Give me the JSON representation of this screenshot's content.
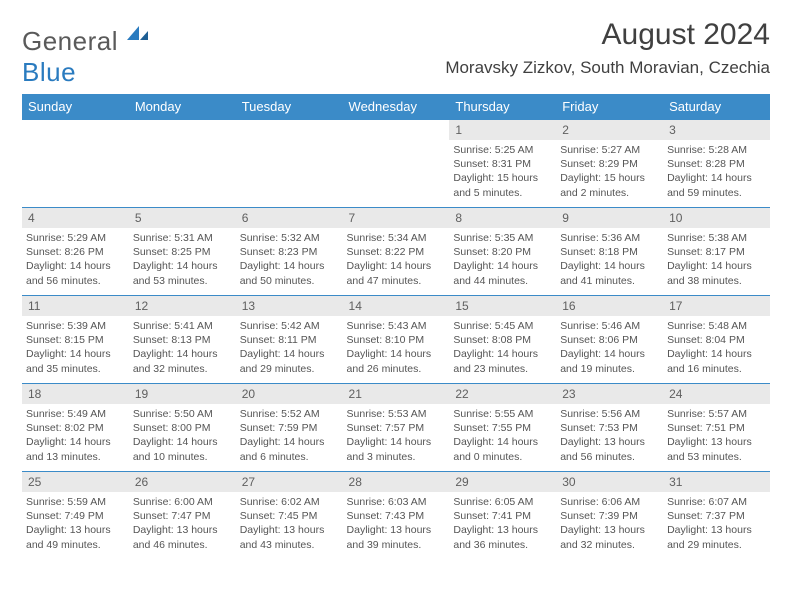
{
  "brand": {
    "name_part1": "General",
    "name_part2": "Blue"
  },
  "colors": {
    "header_bg": "#3b8bc8",
    "header_text": "#ffffff",
    "daynum_bg": "#e9e9e9",
    "daynum_text": "#606060",
    "body_text": "#555555",
    "title_text": "#404040",
    "border": "#3b8bc8",
    "logo_gray": "#5a5a5a",
    "logo_blue": "#2a7bbf"
  },
  "title": "August 2024",
  "location": "Moravsky Zizkov, South Moravian, Czechia",
  "day_headers": [
    "Sunday",
    "Monday",
    "Tuesday",
    "Wednesday",
    "Thursday",
    "Friday",
    "Saturday"
  ],
  "weeks": [
    [
      null,
      null,
      null,
      null,
      {
        "n": "1",
        "sr": "Sunrise: 5:25 AM",
        "ss": "Sunset: 8:31 PM",
        "dl": "Daylight: 15 hours and 5 minutes."
      },
      {
        "n": "2",
        "sr": "Sunrise: 5:27 AM",
        "ss": "Sunset: 8:29 PM",
        "dl": "Daylight: 15 hours and 2 minutes."
      },
      {
        "n": "3",
        "sr": "Sunrise: 5:28 AM",
        "ss": "Sunset: 8:28 PM",
        "dl": "Daylight: 14 hours and 59 minutes."
      }
    ],
    [
      {
        "n": "4",
        "sr": "Sunrise: 5:29 AM",
        "ss": "Sunset: 8:26 PM",
        "dl": "Daylight: 14 hours and 56 minutes."
      },
      {
        "n": "5",
        "sr": "Sunrise: 5:31 AM",
        "ss": "Sunset: 8:25 PM",
        "dl": "Daylight: 14 hours and 53 minutes."
      },
      {
        "n": "6",
        "sr": "Sunrise: 5:32 AM",
        "ss": "Sunset: 8:23 PM",
        "dl": "Daylight: 14 hours and 50 minutes."
      },
      {
        "n": "7",
        "sr": "Sunrise: 5:34 AM",
        "ss": "Sunset: 8:22 PM",
        "dl": "Daylight: 14 hours and 47 minutes."
      },
      {
        "n": "8",
        "sr": "Sunrise: 5:35 AM",
        "ss": "Sunset: 8:20 PM",
        "dl": "Daylight: 14 hours and 44 minutes."
      },
      {
        "n": "9",
        "sr": "Sunrise: 5:36 AM",
        "ss": "Sunset: 8:18 PM",
        "dl": "Daylight: 14 hours and 41 minutes."
      },
      {
        "n": "10",
        "sr": "Sunrise: 5:38 AM",
        "ss": "Sunset: 8:17 PM",
        "dl": "Daylight: 14 hours and 38 minutes."
      }
    ],
    [
      {
        "n": "11",
        "sr": "Sunrise: 5:39 AM",
        "ss": "Sunset: 8:15 PM",
        "dl": "Daylight: 14 hours and 35 minutes."
      },
      {
        "n": "12",
        "sr": "Sunrise: 5:41 AM",
        "ss": "Sunset: 8:13 PM",
        "dl": "Daylight: 14 hours and 32 minutes."
      },
      {
        "n": "13",
        "sr": "Sunrise: 5:42 AM",
        "ss": "Sunset: 8:11 PM",
        "dl": "Daylight: 14 hours and 29 minutes."
      },
      {
        "n": "14",
        "sr": "Sunrise: 5:43 AM",
        "ss": "Sunset: 8:10 PM",
        "dl": "Daylight: 14 hours and 26 minutes."
      },
      {
        "n": "15",
        "sr": "Sunrise: 5:45 AM",
        "ss": "Sunset: 8:08 PM",
        "dl": "Daylight: 14 hours and 23 minutes."
      },
      {
        "n": "16",
        "sr": "Sunrise: 5:46 AM",
        "ss": "Sunset: 8:06 PM",
        "dl": "Daylight: 14 hours and 19 minutes."
      },
      {
        "n": "17",
        "sr": "Sunrise: 5:48 AM",
        "ss": "Sunset: 8:04 PM",
        "dl": "Daylight: 14 hours and 16 minutes."
      }
    ],
    [
      {
        "n": "18",
        "sr": "Sunrise: 5:49 AM",
        "ss": "Sunset: 8:02 PM",
        "dl": "Daylight: 14 hours and 13 minutes."
      },
      {
        "n": "19",
        "sr": "Sunrise: 5:50 AM",
        "ss": "Sunset: 8:00 PM",
        "dl": "Daylight: 14 hours and 10 minutes."
      },
      {
        "n": "20",
        "sr": "Sunrise: 5:52 AM",
        "ss": "Sunset: 7:59 PM",
        "dl": "Daylight: 14 hours and 6 minutes."
      },
      {
        "n": "21",
        "sr": "Sunrise: 5:53 AM",
        "ss": "Sunset: 7:57 PM",
        "dl": "Daylight: 14 hours and 3 minutes."
      },
      {
        "n": "22",
        "sr": "Sunrise: 5:55 AM",
        "ss": "Sunset: 7:55 PM",
        "dl": "Daylight: 14 hours and 0 minutes."
      },
      {
        "n": "23",
        "sr": "Sunrise: 5:56 AM",
        "ss": "Sunset: 7:53 PM",
        "dl": "Daylight: 13 hours and 56 minutes."
      },
      {
        "n": "24",
        "sr": "Sunrise: 5:57 AM",
        "ss": "Sunset: 7:51 PM",
        "dl": "Daylight: 13 hours and 53 minutes."
      }
    ],
    [
      {
        "n": "25",
        "sr": "Sunrise: 5:59 AM",
        "ss": "Sunset: 7:49 PM",
        "dl": "Daylight: 13 hours and 49 minutes."
      },
      {
        "n": "26",
        "sr": "Sunrise: 6:00 AM",
        "ss": "Sunset: 7:47 PM",
        "dl": "Daylight: 13 hours and 46 minutes."
      },
      {
        "n": "27",
        "sr": "Sunrise: 6:02 AM",
        "ss": "Sunset: 7:45 PM",
        "dl": "Daylight: 13 hours and 43 minutes."
      },
      {
        "n": "28",
        "sr": "Sunrise: 6:03 AM",
        "ss": "Sunset: 7:43 PM",
        "dl": "Daylight: 13 hours and 39 minutes."
      },
      {
        "n": "29",
        "sr": "Sunrise: 6:05 AM",
        "ss": "Sunset: 7:41 PM",
        "dl": "Daylight: 13 hours and 36 minutes."
      },
      {
        "n": "30",
        "sr": "Sunrise: 6:06 AM",
        "ss": "Sunset: 7:39 PM",
        "dl": "Daylight: 13 hours and 32 minutes."
      },
      {
        "n": "31",
        "sr": "Sunrise: 6:07 AM",
        "ss": "Sunset: 7:37 PM",
        "dl": "Daylight: 13 hours and 29 minutes."
      }
    ]
  ]
}
